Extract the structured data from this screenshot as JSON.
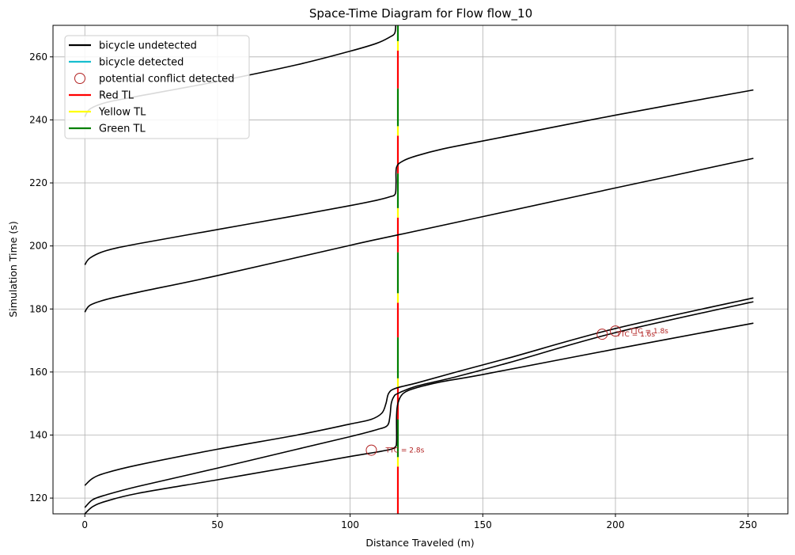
{
  "chart_data": {
    "type": "line",
    "title": "Space-Time Diagram for Flow flow_10",
    "xlabel": "Distance Traveled (m)",
    "ylabel": "Simulation Time (s)",
    "xlim": [
      -12,
      265
    ],
    "ylim": [
      115,
      270
    ],
    "xticks": [
      0,
      50,
      100,
      150,
      200,
      250
    ],
    "yticks": [
      120,
      140,
      160,
      180,
      200,
      220,
      240,
      260
    ],
    "grid": true,
    "legend_position": "upper-left",
    "legend": [
      {
        "label": "bicycle undetected",
        "kind": "line",
        "color": "#000000"
      },
      {
        "label": "bicycle detected",
        "kind": "line",
        "color": "#17becf"
      },
      {
        "label": "potential conflict detected",
        "kind": "circle",
        "color": "#b22222"
      },
      {
        "label": "Red TL",
        "kind": "line",
        "color": "#ff0000"
      },
      {
        "label": "Yellow TL",
        "kind": "line",
        "color": "#ffff00"
      },
      {
        "label": "Green TL",
        "kind": "line",
        "color": "#008000"
      }
    ],
    "traffic_light": {
      "x": 118,
      "segments": [
        {
          "state": "red",
          "from": 115,
          "to": 130
        },
        {
          "state": "yellow",
          "from": 130,
          "to": 133
        },
        {
          "state": "green",
          "from": 133,
          "to": 145
        },
        {
          "state": "red",
          "from": 145,
          "to": 155
        },
        {
          "state": "yellow",
          "from": 155,
          "to": 158
        },
        {
          "state": "green",
          "from": 158,
          "to": 171
        },
        {
          "state": "red",
          "from": 171,
          "to": 182
        },
        {
          "state": "yellow",
          "from": 182,
          "to": 185
        },
        {
          "state": "green",
          "from": 185,
          "to": 198
        },
        {
          "state": "red",
          "from": 198,
          "to": 209
        },
        {
          "state": "yellow",
          "from": 209,
          "to": 212
        },
        {
          "state": "green",
          "from": 212,
          "to": 223
        },
        {
          "state": "red",
          "from": 223,
          "to": 235
        },
        {
          "state": "yellow",
          "from": 235,
          "to": 238
        },
        {
          "state": "green",
          "from": 238,
          "to": 250
        },
        {
          "state": "red",
          "from": 250,
          "to": 262
        },
        {
          "state": "yellow",
          "from": 262,
          "to": 265
        },
        {
          "state": "green",
          "from": 265,
          "to": 270
        }
      ]
    },
    "series": [
      {
        "status": "undetected",
        "points": [
          [
            0,
            115
          ],
          [
            3,
            117.3
          ],
          [
            8,
            119
          ],
          [
            20,
            121.5
          ],
          [
            50,
            125.8
          ],
          [
            80,
            130.2
          ],
          [
            100,
            133.2
          ],
          [
            110,
            134.6
          ],
          [
            115,
            135.4
          ],
          [
            117,
            136.2
          ],
          [
            117.5,
            138
          ],
          [
            117.5,
            146
          ],
          [
            118,
            150
          ],
          [
            120,
            153.2
          ],
          [
            125,
            155
          ],
          [
            135,
            157
          ],
          [
            150,
            159.2
          ],
          [
            200,
            167.3
          ],
          [
            252,
            175.5
          ]
        ]
      },
      {
        "status": "undetected",
        "points": [
          [
            0,
            117
          ],
          [
            3,
            119.5
          ],
          [
            8,
            121
          ],
          [
            20,
            123.7
          ],
          [
            50,
            129.5
          ],
          [
            80,
            135.5
          ],
          [
            100,
            139.5
          ],
          [
            110,
            141.7
          ],
          [
            114,
            143
          ],
          [
            115,
            146
          ],
          [
            115.5,
            150
          ],
          [
            116.5,
            152.2
          ],
          [
            118,
            153.2
          ],
          [
            125,
            155.5
          ],
          [
            140,
            158.5
          ],
          [
            160,
            163
          ],
          [
            200,
            172.5
          ],
          [
            252,
            182.3
          ]
        ]
      },
      {
        "status": "undetected",
        "points": [
          [
            0,
            124
          ],
          [
            3,
            126.3
          ],
          [
            8,
            128
          ],
          [
            20,
            130.5
          ],
          [
            50,
            135.5
          ],
          [
            80,
            140
          ],
          [
            100,
            143.5
          ],
          [
            108,
            145
          ],
          [
            112,
            147
          ],
          [
            113.5,
            150
          ],
          [
            114.5,
            153.2
          ],
          [
            117,
            154.8
          ],
          [
            125,
            156.5
          ],
          [
            140,
            160
          ],
          [
            160,
            164.5
          ],
          [
            200,
            173.8
          ],
          [
            252,
            183.5
          ]
        ]
      },
      {
        "status": "undetected",
        "points": [
          [
            0,
            179
          ],
          [
            2,
            181.2
          ],
          [
            8,
            183
          ],
          [
            20,
            185.3
          ],
          [
            50,
            190.6
          ],
          [
            100,
            200.2
          ],
          [
            118,
            203.5
          ],
          [
            150,
            209.3
          ],
          [
            200,
            218.4
          ],
          [
            252,
            227.8
          ]
        ]
      },
      {
        "status": "undetected",
        "points": [
          [
            0,
            194
          ],
          [
            2,
            196.2
          ],
          [
            8,
            198.5
          ],
          [
            20,
            200.7
          ],
          [
            50,
            205.2
          ],
          [
            80,
            209.7
          ],
          [
            100,
            212.8
          ],
          [
            110,
            214.5
          ],
          [
            115,
            215.6
          ],
          [
            117,
            216.5
          ],
          [
            117.3,
            220
          ],
          [
            117.5,
            225
          ],
          [
            120,
            227
          ],
          [
            125,
            228.6
          ],
          [
            135,
            230.8
          ],
          [
            150,
            233.3
          ],
          [
            200,
            241.5
          ],
          [
            252,
            249.5
          ]
        ]
      },
      {
        "status": "undetected",
        "points": [
          [
            0,
            241
          ],
          [
            2,
            243.5
          ],
          [
            8,
            245.5
          ],
          [
            20,
            247.5
          ],
          [
            50,
            252.2
          ],
          [
            80,
            257.5
          ],
          [
            100,
            261.8
          ],
          [
            110,
            264.3
          ],
          [
            115,
            266.3
          ],
          [
            116.8,
            267.5
          ],
          [
            117.2,
            270
          ]
        ]
      }
    ],
    "conflicts": [
      {
        "x": 108,
        "y": 135.2,
        "label": "TTC = 2.8s"
      },
      {
        "x": 195,
        "y": 172,
        "label": "TTC = 1.6s"
      },
      {
        "x": 200,
        "y": 173,
        "label": "TTC = 1.8s"
      }
    ]
  }
}
